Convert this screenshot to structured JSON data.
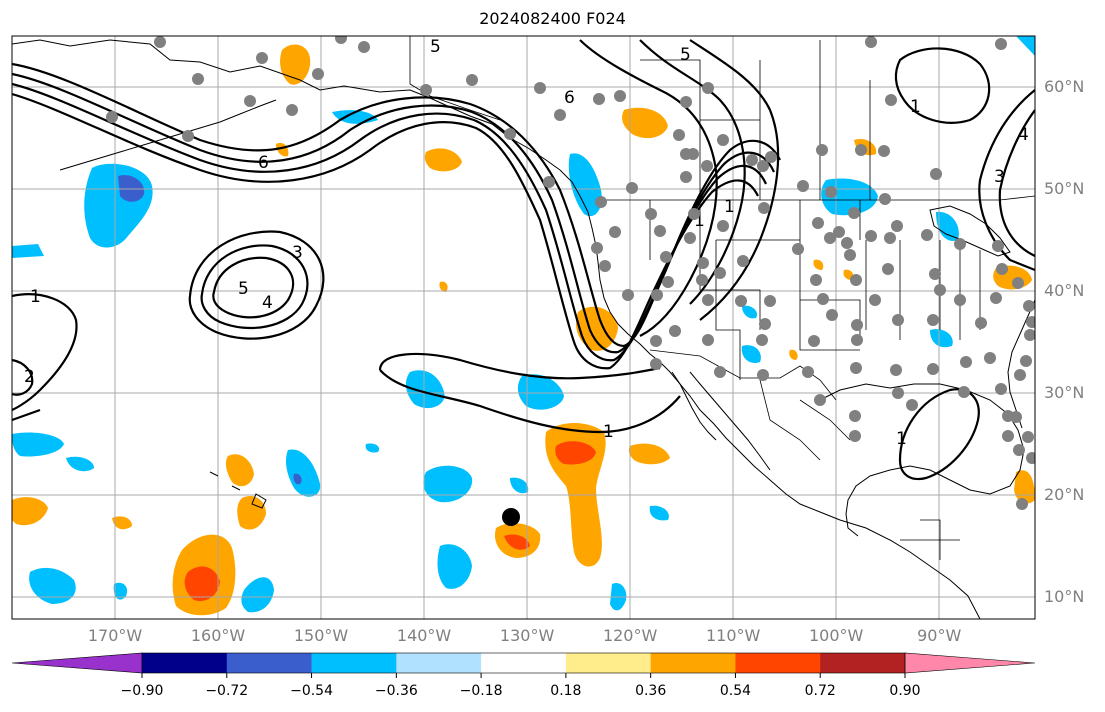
{
  "title": "2024082400 F024",
  "lat_labels": [
    {
      "text": "60°N",
      "lat": 60
    },
    {
      "text": "50°N",
      "lat": 50
    },
    {
      "text": "40°N",
      "lat": 40
    },
    {
      "text": "30°N",
      "lat": 30
    },
    {
      "text": "20°N",
      "lat": 20
    },
    {
      "text": "10°N",
      "lat": 10
    }
  ],
  "lon_labels": [
    {
      "text": "170°W",
      "lon": -170
    },
    {
      "text": "160°W",
      "lon": -160
    },
    {
      "text": "150°W",
      "lon": -150
    },
    {
      "text": "140°W",
      "lon": -140
    },
    {
      "text": "130°W",
      "lon": -130
    },
    {
      "text": "120°W",
      "lon": -120
    },
    {
      "text": "110°W",
      "lon": -110
    },
    {
      "text": "100°W",
      "lon": -100
    },
    {
      "text": "90°W",
      "lon": -90
    }
  ],
  "colorbar": {
    "colors": [
      "#9932cc",
      "#00008b",
      "#3a5fcd",
      "#00bfff",
      "#b0e2ff",
      "#ffffff",
      "#ffec8b",
      "#ffa500",
      "#ff4500",
      "#b22222",
      "#ff88aa"
    ],
    "tick_labels": [
      "−0.90",
      "−0.72",
      "−0.54",
      "−0.36",
      "−0.18",
      "0.18",
      "0.36",
      "0.54",
      "0.72",
      "0.90"
    ]
  },
  "contour_labels": [
    "5",
    "6",
    "6",
    "5",
    "1",
    "4",
    "3",
    "5",
    "4",
    "1",
    "2",
    "1",
    "1",
    "3",
    "1",
    "1"
  ],
  "marker_color": "#808080",
  "colors": {
    "land_outline": "#000000",
    "grid": "#a8a8a8",
    "contour": "#000000"
  }
}
